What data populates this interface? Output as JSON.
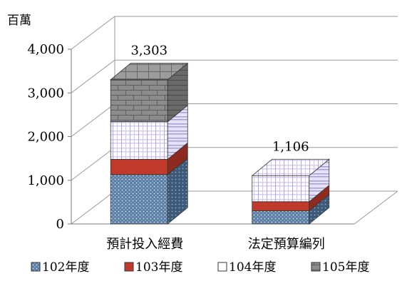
{
  "chart_data": {
    "type": "bar",
    "stacked": true,
    "three_d": true,
    "unit_label": "百萬",
    "categories": [
      "預計投入經費",
      "法定預算編列"
    ],
    "series": [
      {
        "name": "102年度",
        "values": [
          1130,
          300
        ],
        "color": "#6f8fb0",
        "pattern": "dots"
      },
      {
        "name": "103年度",
        "values": [
          350,
          210
        ],
        "color": "#c0392b",
        "pattern": "solid"
      },
      {
        "name": "104年度",
        "values": [
          860,
          596
        ],
        "color": "#ffffff",
        "pattern": "stripes"
      },
      {
        "name": "105年度",
        "values": [
          963,
          0
        ],
        "color": "#8c8c8c",
        "pattern": "bricks"
      }
    ],
    "totals": [
      "3,303",
      "1,106"
    ],
    "yticks": [
      "0",
      "1,000",
      "2,000",
      "3,000",
      "4,000"
    ],
    "ylim": [
      0,
      4000
    ],
    "grid": true,
    "legend_position": "bottom"
  }
}
